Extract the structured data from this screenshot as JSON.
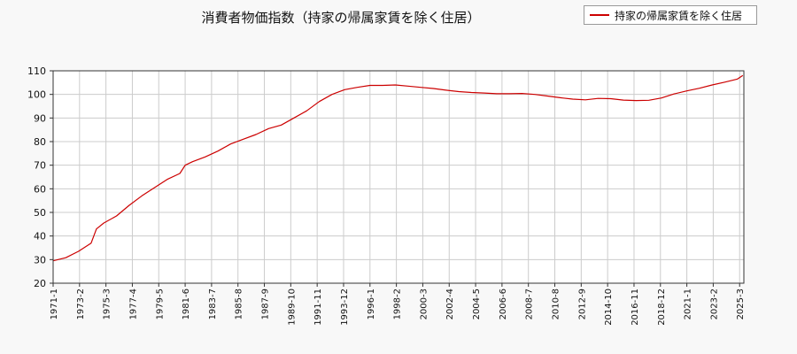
{
  "chart_data": {
    "type": "line",
    "title": "消費者物価指数（持家の帰属家賃を除く住居）",
    "xlabel": "",
    "ylabel": "",
    "ylim": [
      20,
      110
    ],
    "yticks": [
      20,
      30,
      40,
      50,
      60,
      70,
      80,
      90,
      100,
      110
    ],
    "grid": true,
    "legend_position": "top-right",
    "xticks": [
      "1971-1",
      "1973-2",
      "1975-3",
      "1977-4",
      "1979-5",
      "1981-6",
      "1983-7",
      "1985-8",
      "1987-9",
      "1989-10",
      "1991-11",
      "1993-12",
      "1996-1",
      "1998-2",
      "2000-3",
      "2002-4",
      "2004-5",
      "2006-6",
      "2008-7",
      "2010-8",
      "2012-9",
      "2014-10",
      "2016-11",
      "2018-12",
      "2021-1",
      "2023-2",
      "2025-3"
    ],
    "series": [
      {
        "name": "持家の帰属家賃を除く住居",
        "color": "#cc0000",
        "x": [
          "1971-1",
          "1972-1",
          "1973-1",
          "1974-1",
          "1974-6",
          "1975-1",
          "1976-1",
          "1977-1",
          "1978-1",
          "1979-1",
          "1980-1",
          "1981-1",
          "1981-6",
          "1982-1",
          "1983-1",
          "1984-1",
          "1985-1",
          "1986-1",
          "1987-1",
          "1988-1",
          "1989-1",
          "1990-1",
          "1991-1",
          "1992-1",
          "1993-1",
          "1994-1",
          "1995-1",
          "1996-1",
          "1997-1",
          "1998-1",
          "1999-1",
          "2000-1",
          "2001-1",
          "2002-1",
          "2003-1",
          "2004-1",
          "2005-1",
          "2006-1",
          "2007-1",
          "2008-1",
          "2009-1",
          "2010-1",
          "2011-1",
          "2012-1",
          "2013-1",
          "2014-1",
          "2015-1",
          "2016-1",
          "2017-1",
          "2018-1",
          "2019-1",
          "2020-1",
          "2021-1",
          "2022-1",
          "2023-1",
          "2024-1",
          "2025-1",
          "2025-6"
        ],
        "values": [
          29.5,
          30.8,
          33.5,
          37.0,
          43.0,
          45.5,
          48.5,
          53.0,
          57.0,
          60.5,
          64.0,
          66.5,
          70.0,
          71.5,
          73.5,
          76.0,
          79.0,
          81.0,
          83.0,
          85.5,
          87.0,
          90.0,
          93.0,
          97.0,
          100.0,
          102.0,
          103.0,
          103.8,
          103.8,
          104.0,
          103.5,
          103.0,
          102.5,
          101.8,
          101.2,
          100.8,
          100.6,
          100.3,
          100.3,
          100.4,
          100.0,
          99.3,
          98.6,
          98.0,
          97.7,
          98.3,
          98.2,
          97.6,
          97.4,
          97.5,
          98.5,
          100.2,
          101.5,
          102.6,
          104.0,
          105.2,
          106.5,
          108.0
        ]
      }
    ]
  }
}
